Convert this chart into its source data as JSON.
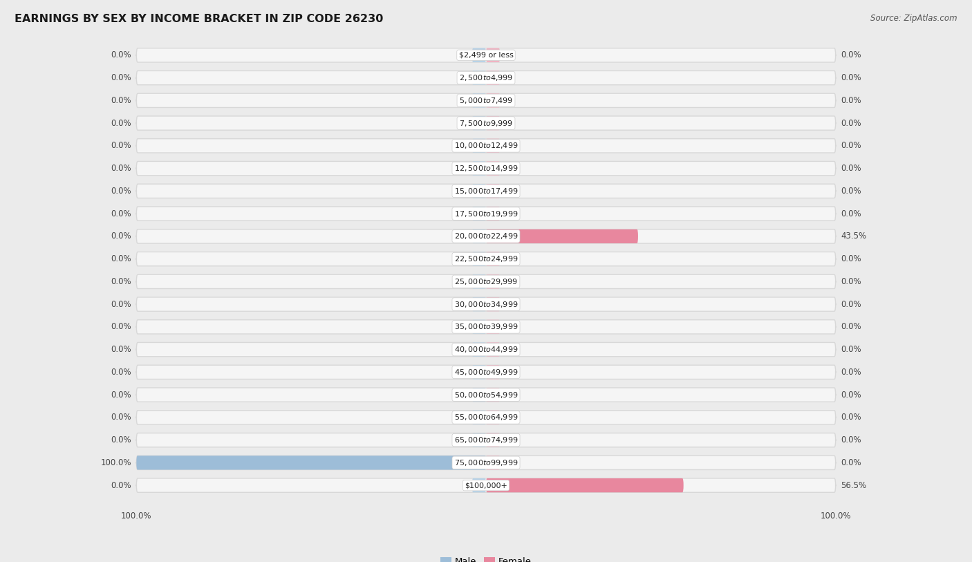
{
  "title": "EARNINGS BY SEX BY INCOME BRACKET IN ZIP CODE 26230",
  "source": "Source: ZipAtlas.com",
  "categories": [
    "$2,499 or less",
    "$2,500 to $4,999",
    "$5,000 to $7,499",
    "$7,500 to $9,999",
    "$10,000 to $12,499",
    "$12,500 to $14,999",
    "$15,000 to $17,499",
    "$17,500 to $19,999",
    "$20,000 to $22,499",
    "$22,500 to $24,999",
    "$25,000 to $29,999",
    "$30,000 to $34,999",
    "$35,000 to $39,999",
    "$40,000 to $44,999",
    "$45,000 to $49,999",
    "$50,000 to $54,999",
    "$55,000 to $64,999",
    "$65,000 to $74,999",
    "$75,000 to $99,999",
    "$100,000+"
  ],
  "male_values": [
    0.0,
    0.0,
    0.0,
    0.0,
    0.0,
    0.0,
    0.0,
    0.0,
    0.0,
    0.0,
    0.0,
    0.0,
    0.0,
    0.0,
    0.0,
    0.0,
    0.0,
    0.0,
    100.0,
    0.0
  ],
  "female_values": [
    0.0,
    0.0,
    0.0,
    0.0,
    0.0,
    0.0,
    0.0,
    0.0,
    43.5,
    0.0,
    0.0,
    0.0,
    0.0,
    0.0,
    0.0,
    0.0,
    0.0,
    0.0,
    0.0,
    56.5
  ],
  "male_color": "#9dbdd8",
  "female_color": "#e8879e",
  "male_color_stub": "#b8d3e8",
  "female_color_stub": "#f2b3c3",
  "male_label": "Male",
  "female_label": "Female",
  "bg_color": "#ebebeb",
  "row_bg_color": "#f5f5f5",
  "row_border_color": "#d8d8d8",
  "max_value": 100.0,
  "title_fontsize": 11.5,
  "source_fontsize": 8.5,
  "category_fontsize": 8.0,
  "value_fontsize": 8.5
}
